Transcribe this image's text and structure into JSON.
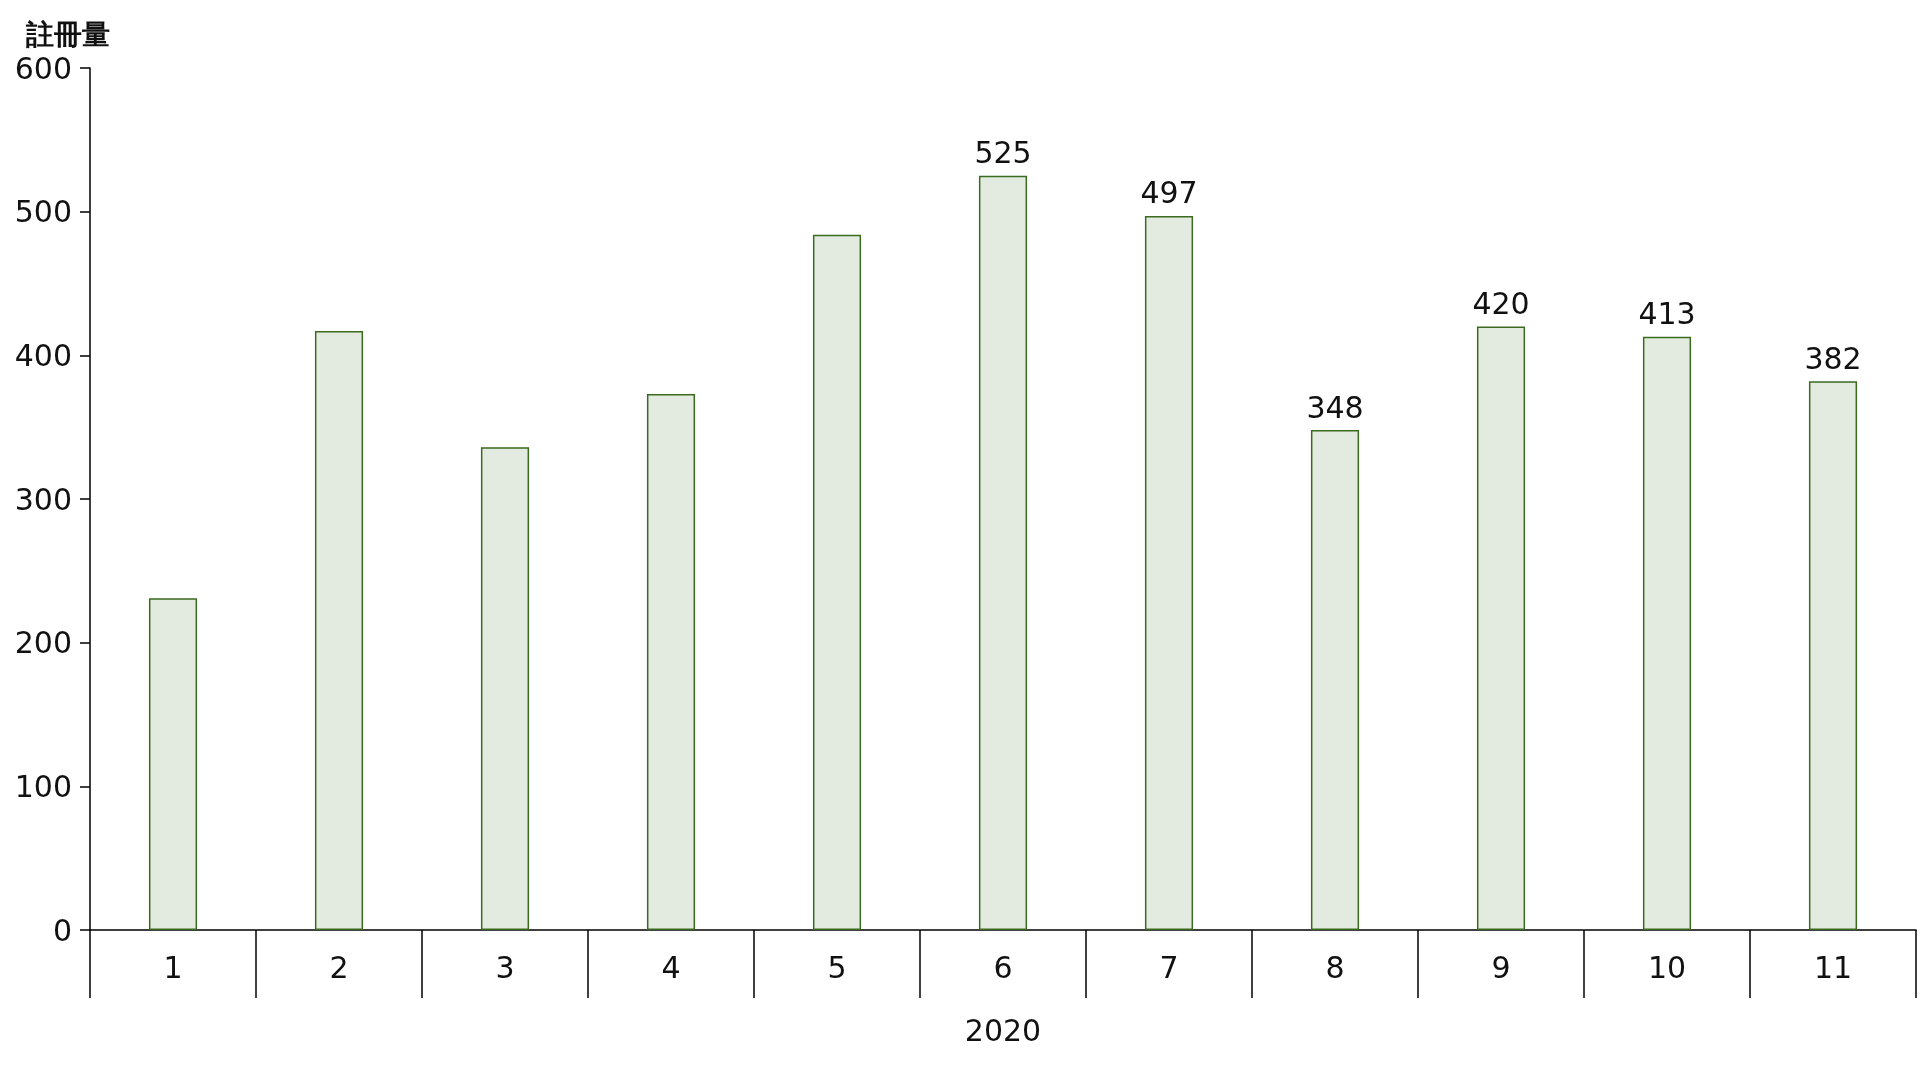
{
  "chart_data": {
    "type": "bar",
    "ylabel": "註冊量",
    "xlabel": "2020",
    "categories": [
      "1",
      "2",
      "3",
      "4",
      "5",
      "6",
      "7",
      "8",
      "9",
      "10",
      "11"
    ],
    "values": [
      231,
      417,
      336,
      373,
      484,
      525,
      497,
      348,
      420,
      413,
      382
    ],
    "value_labels": [
      null,
      null,
      null,
      null,
      null,
      "525",
      "497",
      "348",
      "420",
      "413",
      "382"
    ],
    "color": "#3a6b1e",
    "ylim": [
      0,
      600
    ],
    "yticks": [
      0,
      100,
      200,
      300,
      400,
      500,
      600
    ],
    "grid": false
  }
}
